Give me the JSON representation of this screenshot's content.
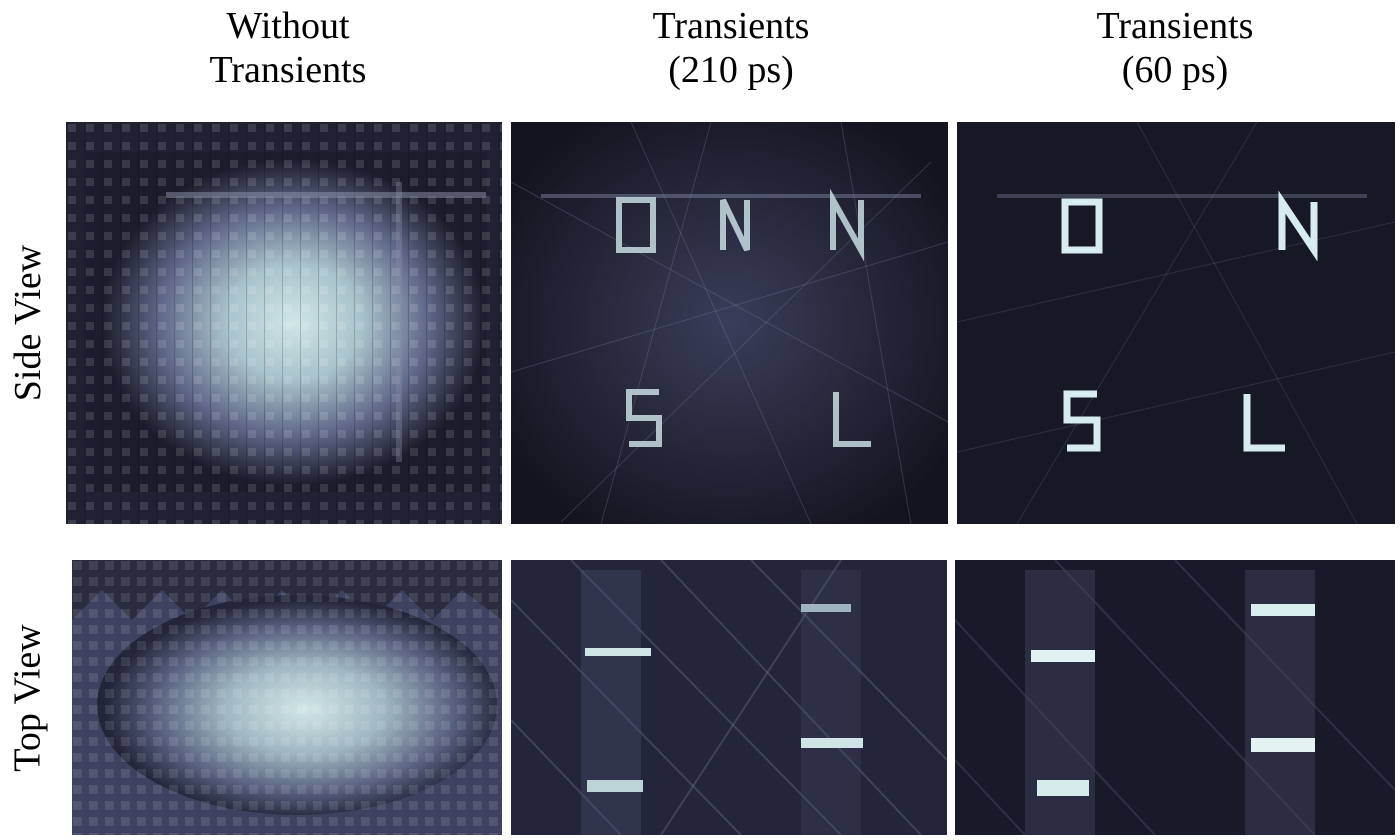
{
  "figure": {
    "columns": [
      {
        "title_line1": "Without",
        "title_line2": "Transients"
      },
      {
        "title_line1": "Transients",
        "title_line2": "(210 ps)"
      },
      {
        "title_line1": "Transients",
        "title_line2": "(60 ps)"
      }
    ],
    "rows": [
      {
        "label": "Side View"
      },
      {
        "label": "Top View"
      }
    ],
    "side_view_letters": [
      "O",
      "N",
      "S",
      "L"
    ]
  }
}
